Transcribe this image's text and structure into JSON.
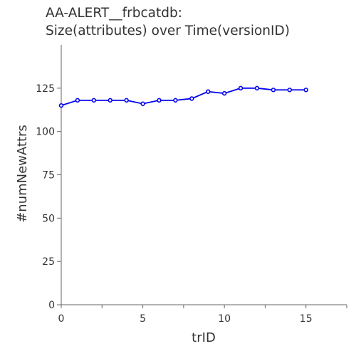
{
  "chart_data": {
    "type": "line",
    "title_lines": [
      "AA-ALERT__frbcatdb:",
      "Size(attributes) over Time(versionID)"
    ],
    "xlabel": "trID",
    "ylabel": "#numNewAttrs",
    "xlim": [
      0,
      17.5
    ],
    "ylim": [
      0,
      150
    ],
    "xticks": [
      0,
      5,
      10,
      15
    ],
    "yticks": [
      0,
      25,
      50,
      75,
      100,
      125
    ],
    "grid": false,
    "legend": "none",
    "series": [
      {
        "color": "#0000ee",
        "x": [
          0,
          1,
          2,
          3,
          4,
          5,
          6,
          7,
          8,
          9,
          10,
          11,
          12,
          13,
          14,
          15
        ],
        "y": [
          115,
          118,
          118,
          118,
          118,
          116,
          118,
          118,
          119,
          123,
          122,
          125,
          125,
          124,
          124,
          124
        ]
      }
    ]
  }
}
